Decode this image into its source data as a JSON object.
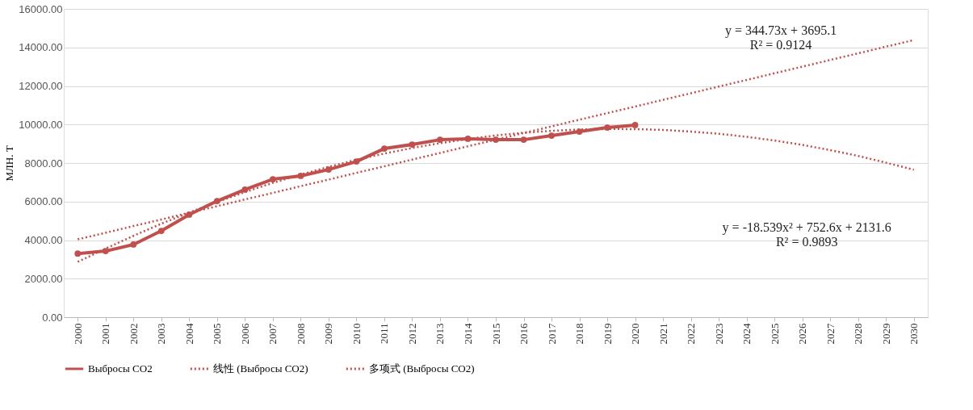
{
  "chart_data": {
    "type": "line",
    "categories": [
      "2000",
      "2001",
      "2002",
      "2003",
      "2004",
      "2005",
      "2006",
      "2007",
      "2008",
      "2009",
      "2010",
      "2011",
      "2012",
      "2013",
      "2014",
      "2015",
      "2016",
      "2017",
      "2018",
      "2019",
      "2020",
      "2021",
      "2022",
      "2023",
      "2024",
      "2025",
      "2026",
      "2027",
      "2028",
      "2029",
      "2030"
    ],
    "ylabel": "МЛН. Т",
    "ylim": [
      0,
      16000
    ],
    "yticks": [
      {
        "value": 0,
        "label": "0.00"
      },
      {
        "value": 2000,
        "label": "2000.00"
      },
      {
        "value": 4000,
        "label": "4000.00"
      },
      {
        "value": 6000,
        "label": "6000.00"
      },
      {
        "value": 8000,
        "label": "8000.00"
      },
      {
        "value": 10000,
        "label": "10000.00"
      },
      {
        "value": 12000,
        "label": "12000.00"
      },
      {
        "value": 14000,
        "label": "14000.00"
      },
      {
        "value": 16000,
        "label": "16000.00"
      }
    ],
    "grid": "y",
    "legend": "bottom",
    "series": [
      {
        "name": "Выбросы CO2",
        "color": "#c0504d",
        "marker": "circle",
        "line_style": "solid",
        "values": [
          3300,
          3430,
          3770,
          4480,
          5320,
          6030,
          6620,
          7160,
          7330,
          7660,
          8080,
          8750,
          8960,
          9210,
          9260,
          9210,
          9210,
          9420,
          9630,
          9840,
          9970,
          null,
          null,
          null,
          null,
          null,
          null,
          null,
          null,
          null,
          null
        ]
      },
      {
        "name": "线性 (Выбросы CO2)",
        "color": "#c0504d",
        "marker": "none",
        "line_style": "dotted",
        "values": [
          4040,
          4380,
          4730,
          5070,
          5420,
          5760,
          6110,
          6450,
          6800,
          7140,
          7490,
          7830,
          8180,
          8520,
          8870,
          9210,
          9560,
          9900,
          10250,
          10590,
          10930,
          11280,
          11620,
          11970,
          12310,
          12660,
          13000,
          13350,
          13690,
          14040,
          14380
        ]
      },
      {
        "name": "多项式 (Выбросы CO2)",
        "color": "#c0504d",
        "marker": "none",
        "line_style": "dotted",
        "values": [
          2870,
          3560,
          4220,
          4850,
          5430,
          5980,
          6490,
          6970,
          7400,
          7800,
          8170,
          8490,
          8780,
          9030,
          9250,
          9430,
          9570,
          9670,
          9740,
          9770,
          9760,
          9720,
          9630,
          9520,
          9360,
          9170,
          8940,
          8670,
          8370,
          8020,
          7650
        ]
      }
    ],
    "annotations": [
      "y = 344.73x + 3695.1\nR² = 0.9124",
      "y = -18.539x² + 752.6x + 2131.6\nR² = 0.9893"
    ]
  }
}
